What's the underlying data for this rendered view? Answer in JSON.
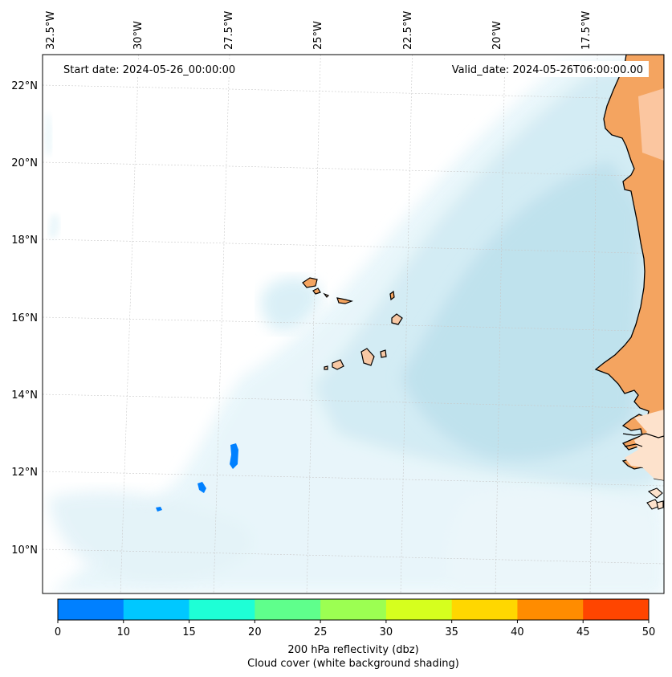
{
  "map": {
    "start_date": "Start date: 2024-05-26_00:00:00",
    "valid_date": "Valid_date: 2024-05-26T06:00:00.00",
    "lon_labels": [
      "32.5°W",
      "30°W",
      "27.5°W",
      "25°W",
      "22.5°W",
      "20°W",
      "17.5°W"
    ],
    "lat_labels": [
      "22°N",
      "20°N",
      "18°N",
      "16°N",
      "14°N",
      "12°N",
      "10°N"
    ],
    "land_color": "#f4a460",
    "coast_color": "#000000",
    "cloud_color": "#add8e6",
    "reflectivity_color": "#0080ff"
  },
  "colorbar": {
    "ticks": [
      "0",
      "10",
      "15",
      "20",
      "25",
      "30",
      "35",
      "40",
      "45",
      "50"
    ],
    "colors": [
      "#0080ff",
      "#00c8ff",
      "#1effd6",
      "#5fff8c",
      "#9cff52",
      "#d6ff1e",
      "#ffd700",
      "#ff8c00",
      "#ff4500"
    ],
    "label_line1": "200 hPa reflectivity (dbz)",
    "label_line2": "Cloud cover (white background shading)"
  }
}
